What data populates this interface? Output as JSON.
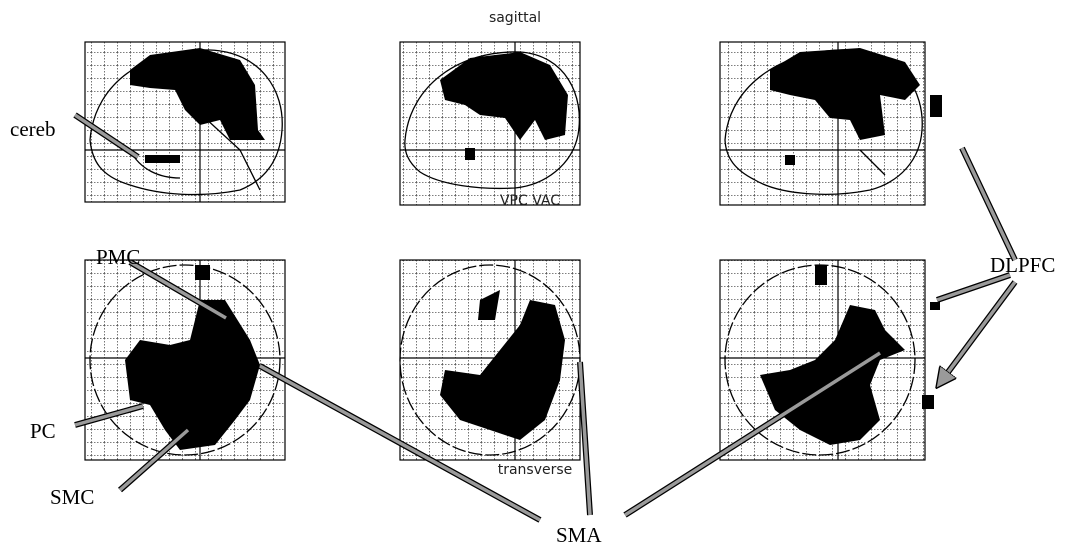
{
  "views": {
    "top": "sagittal",
    "center": "VPC VAC",
    "bottom": "transverse"
  },
  "annotations": {
    "cereb": "cereb",
    "pmc": "PMC",
    "pc": "PC",
    "smc": "SMC",
    "sma": "SMA",
    "dlpfc": "DLPFC"
  }
}
